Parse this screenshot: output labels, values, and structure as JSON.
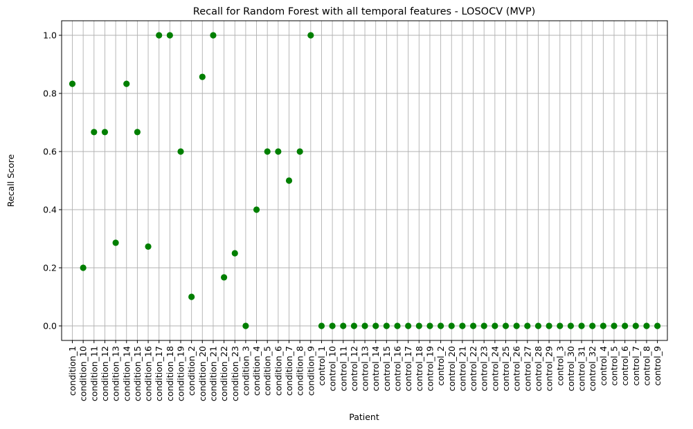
{
  "chart_data": {
    "type": "scatter",
    "title": "Recall for Random Forest with all temporal features - LOSOCV (MVP)",
    "xlabel": "Patient",
    "ylabel": "Recall Score",
    "ylim": [
      -0.05,
      1.05
    ],
    "yticks": [
      "0.0",
      "0.2",
      "0.4",
      "0.6",
      "0.8",
      "1.0"
    ],
    "grid": true,
    "marker_color": "#007f00",
    "categories": [
      "condition_1",
      "condition_10",
      "condition_11",
      "condition_12",
      "condition_13",
      "condition_14",
      "condition_15",
      "condition_16",
      "condition_17",
      "condition_18",
      "condition_19",
      "condition_2",
      "condition_20",
      "condition_21",
      "condition_22",
      "condition_23",
      "condition_3",
      "condition_4",
      "condition_5",
      "condition_6",
      "condition_7",
      "condition_8",
      "condition_9",
      "control_1",
      "control_10",
      "control_11",
      "control_12",
      "control_13",
      "control_14",
      "control_15",
      "control_16",
      "control_17",
      "control_18",
      "control_19",
      "control_2",
      "control_20",
      "control_21",
      "control_22",
      "control_23",
      "control_24",
      "control_25",
      "control_26",
      "control_27",
      "control_28",
      "control_29",
      "control_3",
      "control_30",
      "control_31",
      "control_32",
      "control_4",
      "control_5",
      "control_6",
      "control_7",
      "control_8",
      "control_9"
    ],
    "values": [
      0.833,
      0.2,
      0.667,
      0.667,
      0.286,
      0.833,
      0.667,
      0.273,
      1.0,
      1.0,
      0.6,
      0.1,
      0.857,
      1.0,
      0.167,
      0.25,
      0.0,
      0.4,
      0.6,
      0.6,
      0.5,
      0.6,
      1.0,
      0,
      0,
      0,
      0,
      0,
      0,
      0,
      0,
      0,
      0,
      0,
      0,
      0,
      0,
      0,
      0,
      0,
      0,
      0,
      0,
      0,
      0,
      0,
      0,
      0,
      0,
      0,
      0,
      0,
      0,
      0,
      0
    ]
  }
}
